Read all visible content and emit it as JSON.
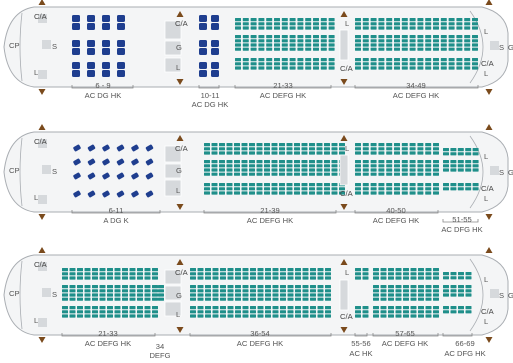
{
  "colors": {
    "navy": "#1f3e8f",
    "teal": "#1f8f8a",
    "seatmap_outline": "#a9adb2",
    "fuselage_fill": "#f4f5f6",
    "galley_fill": "#d6d9dc",
    "exit_arrow": "#7a4a1c",
    "label_text": "#555555",
    "bracket_line": "#888888"
  },
  "icons": {
    "exit": "exit-arrow-icon",
    "galley": "galley-icon",
    "lavatory": "lavatory-icon",
    "closet": "closet-icon",
    "crew": "crew-rest-icon"
  },
  "maps": [
    {
      "id": "map-1",
      "facilities": {
        "cp": "CP",
        "ca": "C/A",
        "s": "S",
        "g": "G",
        "l": "L"
      },
      "sections": [
        {
          "rows": "6 - 9",
          "letters": "AC DG HK"
        },
        {
          "rows": "10-11",
          "letters": "AC DG HK"
        },
        {
          "rows": "21-33",
          "letters": "AC DEFG HK"
        },
        {
          "rows": "34-49",
          "letters": "AC DEFG HK"
        }
      ]
    },
    {
      "id": "map-2",
      "facilities": {
        "cp": "CP",
        "ca": "C/A",
        "s": "S",
        "g": "G",
        "l": "L"
      },
      "sections": [
        {
          "rows": "6-11",
          "letters": "A DG K"
        },
        {
          "rows": "21-39",
          "letters": "AC DEFG HK"
        },
        {
          "rows": "40-50",
          "letters": "AC DEFG HK"
        },
        {
          "rows": "51-55",
          "letters": "AC DFG HK"
        }
      ]
    },
    {
      "id": "map-3",
      "facilities": {
        "cp": "CP",
        "ca": "C/A",
        "s": "S",
        "g": "G",
        "l": "L"
      },
      "sections": [
        {
          "rows": "21-33",
          "letters": "AC DEFG HK"
        },
        {
          "rows": "34",
          "letters": "DEFG"
        },
        {
          "rows": "36-54",
          "letters": "AC DEFG HK"
        },
        {
          "rows": "55-56",
          "letters": "AC HK"
        },
        {
          "rows": "57-65",
          "letters": "AC DEFG HK"
        },
        {
          "rows": "66-69",
          "letters": "AC DFG HK"
        }
      ]
    }
  ]
}
